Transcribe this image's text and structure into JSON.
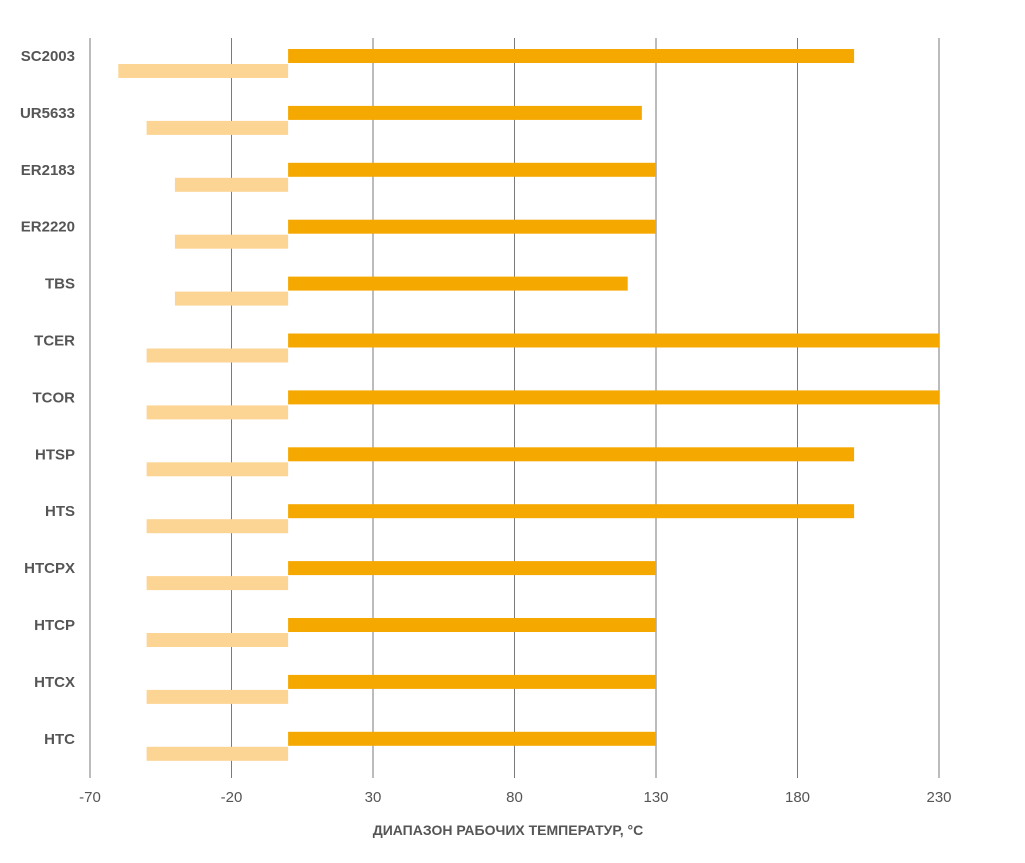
{
  "chart_data": {
    "type": "bar",
    "orientation": "horizontal",
    "title": "",
    "xlabel": "ДИАПАЗОН РАБОЧИХ ТЕМПЕРАТУР, °C",
    "ylabel": "",
    "xlim": [
      -70,
      230
    ],
    "xticks": [
      -70,
      -20,
      30,
      80,
      130,
      180,
      230
    ],
    "grid": true,
    "legend": "none",
    "categories": [
      "SC2003",
      "UR5633",
      "ER2183",
      "ER2220",
      "TBS",
      "TCER",
      "TCOR",
      "HTSP",
      "HTS",
      "HTCPX",
      "HTCP",
      "HTCX",
      "HTC"
    ],
    "series": [
      {
        "role": "max",
        "color": "#F5A800",
        "base": 0,
        "values": [
          200,
          125,
          130,
          130,
          120,
          230,
          230,
          200,
          200,
          130,
          130,
          130,
          130
        ]
      },
      {
        "role": "min",
        "color": "#FCD595",
        "base": 0,
        "values": [
          -60,
          -50,
          -40,
          -40,
          -40,
          -50,
          -50,
          -50,
          -50,
          -50,
          -50,
          -50,
          -50
        ]
      }
    ]
  }
}
